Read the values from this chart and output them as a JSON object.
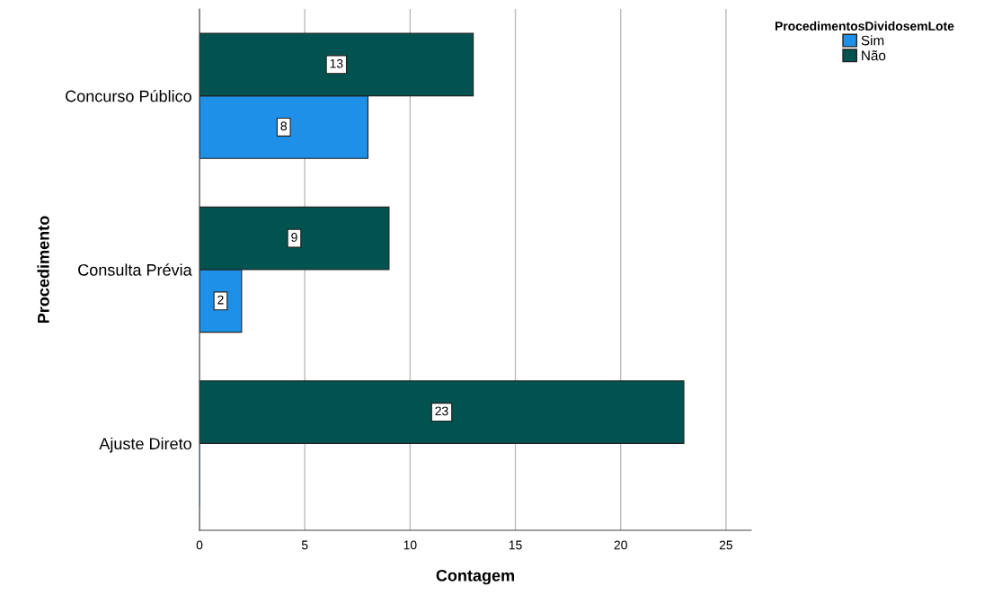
{
  "chart_data": {
    "type": "bar",
    "orientation": "horizontal",
    "xlabel": "Contagem",
    "ylabel": "Procedimento",
    "legend_title": "ProcedimentosDividosemLote",
    "categories": [
      "Concurso Público",
      "Consulta Prévia",
      "Ajuste Direto"
    ],
    "series": [
      {
        "name": "Sim",
        "color": "#1e90e8",
        "values": [
          8,
          2,
          0
        ],
        "value_labels": [
          "8",
          "2",
          null
        ]
      },
      {
        "name": "Não",
        "color": "#02524f",
        "values": [
          13,
          9,
          23
        ],
        "value_labels": [
          "13",
          "9",
          "23"
        ]
      }
    ],
    "xlim": [
      0,
      26.2
    ],
    "xticks": [
      0,
      5,
      10,
      15,
      20,
      25
    ],
    "grid": "x",
    "legend": "top right"
  }
}
